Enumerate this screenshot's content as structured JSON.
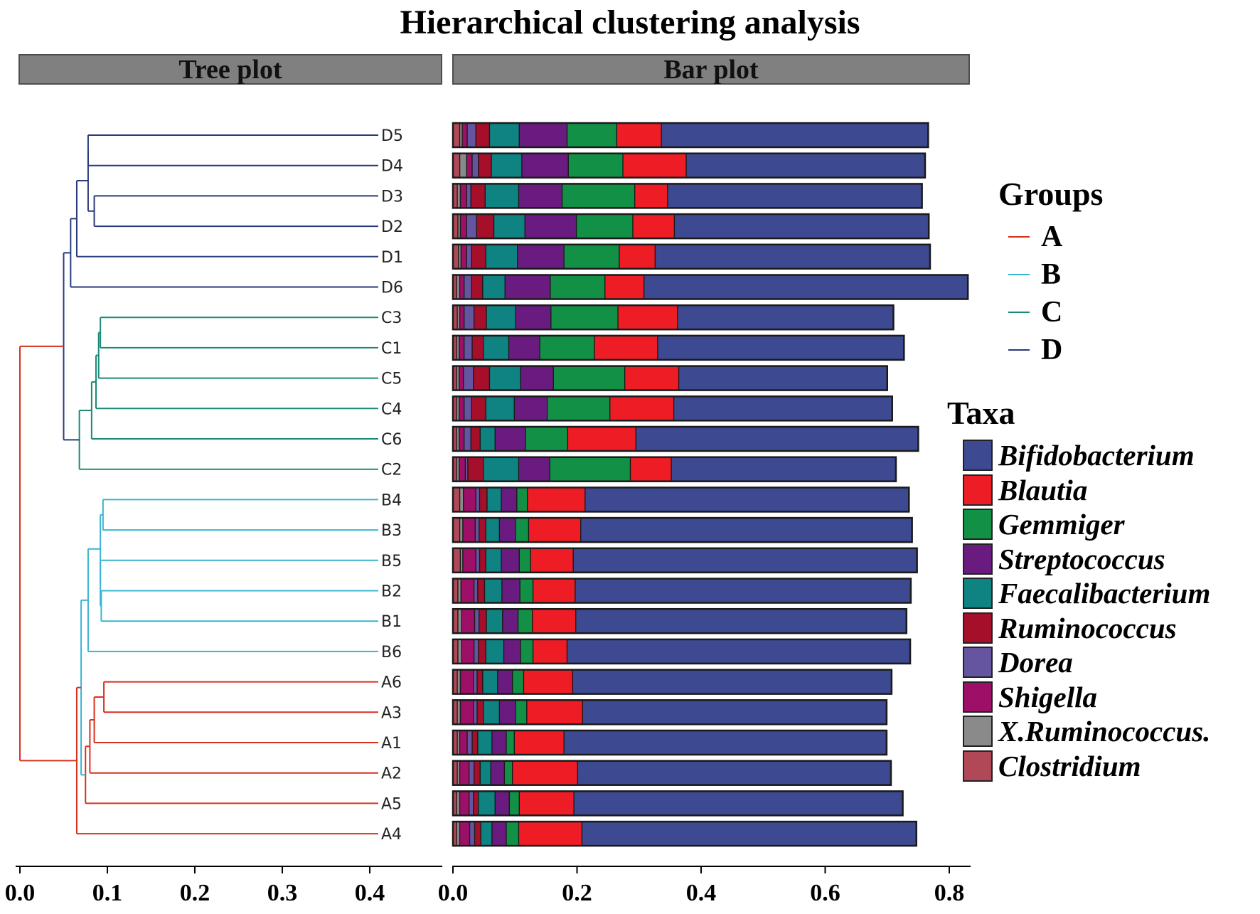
{
  "title": "Hierarchical clustering analysis",
  "panels": {
    "tree_label": "Tree plot",
    "bar_label": "Bar plot"
  },
  "groups_legend": {
    "title": "Groups",
    "items": [
      {
        "label": "A",
        "color": "#d7301f"
      },
      {
        "label": "B",
        "color": "#3bb3d1"
      },
      {
        "label": "C",
        "color": "#1a8a76"
      },
      {
        "label": "D",
        "color": "#283a7a"
      }
    ]
  },
  "taxa_legend": {
    "title": "Taxa",
    "items": [
      {
        "label": "Bifidobacterium",
        "color": "#3d4990"
      },
      {
        "label": "Blautia",
        "color": "#ee1c24"
      },
      {
        "label": "Gemmiger",
        "color": "#129146"
      },
      {
        "label": "Streptococcus",
        "color": "#6a1b7f"
      },
      {
        "label": "Faecalibacterium",
        "color": "#0f8282"
      },
      {
        "label": "Ruminococcus",
        "color": "#a50f2a"
      },
      {
        "label": "Dorea",
        "color": "#6555a0"
      },
      {
        "label": "Shigella",
        "color": "#9e0f67"
      },
      {
        "label": "X.Ruminococcus.",
        "color": "#8a8a8a"
      },
      {
        "label": "Clostridium",
        "color": "#b04858"
      }
    ]
  },
  "chart_data": [
    {
      "type": "dendrogram",
      "title": "Tree plot",
      "leaves_top_to_bottom": [
        "D5",
        "D4",
        "D3",
        "D2",
        "D1",
        "D6",
        "C3",
        "C1",
        "C5",
        "C4",
        "C6",
        "C2",
        "B4",
        "B3",
        "B5",
        "B2",
        "B1",
        "B6",
        "A6",
        "A3",
        "A1",
        "A2",
        "A5",
        "A4"
      ],
      "leaf_groups": [
        "D",
        "D",
        "D",
        "D",
        "D",
        "D",
        "C",
        "C",
        "C",
        "C",
        "C",
        "C",
        "B",
        "B",
        "B",
        "B",
        "B",
        "B",
        "A",
        "A",
        "A",
        "A",
        "A",
        "A"
      ],
      "merges": [
        {
          "a": "D4",
          "b": "D5",
          "height": 0.078,
          "group": "D"
        },
        {
          "a": "D2",
          "b": "D3",
          "height": 0.085,
          "group": "D"
        },
        {
          "a": "D5-D4",
          "b": "D3-D2",
          "height": 0.078,
          "group": "D"
        },
        {
          "a": "D5-D3",
          "b": "D1",
          "height": 0.065,
          "group": "D"
        },
        {
          "a": "D5-D1",
          "b": "D6",
          "height": 0.058,
          "group": "D"
        },
        {
          "a": "C3",
          "b": "C1",
          "height": 0.092,
          "group": "C"
        },
        {
          "a": "C3-C1",
          "b": "C5",
          "height": 0.09,
          "group": "C"
        },
        {
          "a": "C3-C5",
          "b": "C4",
          "height": 0.087,
          "group": "C"
        },
        {
          "a": "C3-C4",
          "b": "C6",
          "height": 0.082,
          "group": "C"
        },
        {
          "a": "C3-C6",
          "b": "C2",
          "height": 0.068,
          "group": "C"
        },
        {
          "a": "D-cluster",
          "b": "C-cluster",
          "height": 0.05,
          "group": "D"
        },
        {
          "a": "B4",
          "b": "B3",
          "height": 0.095,
          "group": "B"
        },
        {
          "a": "B2",
          "b": "B1",
          "height": 0.093,
          "group": "B"
        },
        {
          "a": "B5",
          "b": "B2-B1",
          "height": 0.092,
          "group": "B"
        },
        {
          "a": "B4-B3",
          "b": "B5-B1",
          "height": 0.092,
          "group": "B"
        },
        {
          "a": "B4-B1",
          "b": "B6",
          "height": 0.078,
          "group": "B"
        },
        {
          "a": "A6",
          "b": "A3",
          "height": 0.096,
          "group": "A"
        },
        {
          "a": "A6-A3",
          "b": "A1",
          "height": 0.085,
          "group": "A"
        },
        {
          "a": "A6-A1",
          "b": "A2",
          "height": 0.08,
          "group": "A"
        },
        {
          "a": "A6-A2",
          "b": "A5",
          "height": 0.075,
          "group": "A"
        },
        {
          "a": "B-cluster",
          "b": "A-cluster",
          "height": 0.07,
          "group": "B"
        },
        {
          "a": "B6-A5",
          "b": "A4",
          "height": 0.065,
          "group": "A"
        },
        {
          "a": "D/C-cluster",
          "b": "B/A-cluster",
          "height": 0.0,
          "group": "A"
        }
      ],
      "xlim": [
        0.0,
        0.48
      ],
      "xticks": [
        "0.0",
        "0.1",
        "0.2",
        "0.3",
        "0.4"
      ]
    },
    {
      "type": "stacked-barh",
      "title": "Bar plot",
      "categories": [
        "D5",
        "D4",
        "D3",
        "D2",
        "D1",
        "D6",
        "C3",
        "C1",
        "C5",
        "C4",
        "C6",
        "C2",
        "B4",
        "B3",
        "B5",
        "B2",
        "B1",
        "B6",
        "A6",
        "A3",
        "A1",
        "A2",
        "A5",
        "A4"
      ],
      "stack_order_from_axis": [
        "Clostridium",
        "X.Ruminococcus.",
        "Shigella",
        "Dorea",
        "Ruminococcus",
        "Faecalibacterium",
        "Streptococcus",
        "Gemmiger",
        "Blautia",
        "Bifidobacterium"
      ],
      "values": [
        [
          0.011,
          0.004,
          0.008,
          0.014,
          0.022,
          0.048,
          0.077,
          0.08,
          0.072,
          0.43
        ],
        [
          0.011,
          0.011,
          0.009,
          0.01,
          0.021,
          0.049,
          0.075,
          0.088,
          0.102,
          0.385
        ],
        [
          0.007,
          0.005,
          0.01,
          0.007,
          0.023,
          0.054,
          0.07,
          0.117,
          0.053,
          0.41
        ],
        [
          0.008,
          0.004,
          0.01,
          0.016,
          0.028,
          0.05,
          0.083,
          0.091,
          0.067,
          0.41
        ],
        [
          0.009,
          0.004,
          0.009,
          0.008,
          0.023,
          0.051,
          0.075,
          0.089,
          0.058,
          0.443
        ],
        [
          0.006,
          0.005,
          0.007,
          0.012,
          0.018,
          0.036,
          0.073,
          0.088,
          0.063,
          0.522
        ],
        [
          0.007,
          0.004,
          0.007,
          0.016,
          0.02,
          0.047,
          0.057,
          0.108,
          0.096,
          0.348
        ],
        [
          0.006,
          0.004,
          0.008,
          0.013,
          0.018,
          0.041,
          0.05,
          0.088,
          0.102,
          0.397
        ],
        [
          0.006,
          0.004,
          0.007,
          0.016,
          0.026,
          0.05,
          0.053,
          0.115,
          0.087,
          0.336
        ],
        [
          0.006,
          0.004,
          0.008,
          0.012,
          0.023,
          0.046,
          0.053,
          0.101,
          0.103,
          0.352
        ],
        [
          0.006,
          0.004,
          0.008,
          0.011,
          0.015,
          0.024,
          0.049,
          0.068,
          0.11,
          0.455
        ],
        [
          0.006,
          0.004,
          0.01,
          0.004,
          0.025,
          0.057,
          0.05,
          0.13,
          0.066,
          0.362
        ],
        [
          0.011,
          0.006,
          0.02,
          0.006,
          0.012,
          0.023,
          0.025,
          0.017,
          0.093,
          0.522
        ],
        [
          0.011,
          0.005,
          0.02,
          0.006,
          0.011,
          0.022,
          0.026,
          0.021,
          0.084,
          0.534
        ],
        [
          0.012,
          0.004,
          0.021,
          0.006,
          0.01,
          0.025,
          0.029,
          0.018,
          0.069,
          0.554
        ],
        [
          0.008,
          0.005,
          0.021,
          0.006,
          0.011,
          0.028,
          0.029,
          0.021,
          0.068,
          0.541
        ],
        [
          0.008,
          0.006,
          0.021,
          0.007,
          0.012,
          0.026,
          0.025,
          0.023,
          0.07,
          0.533
        ],
        [
          0.008,
          0.006,
          0.02,
          0.007,
          0.012,
          0.029,
          0.027,
          0.02,
          0.055,
          0.553
        ],
        [
          0.007,
          0.005,
          0.021,
          0.006,
          0.009,
          0.024,
          0.024,
          0.018,
          0.079,
          0.514
        ],
        [
          0.007,
          0.005,
          0.021,
          0.006,
          0.01,
          0.026,
          0.026,
          0.018,
          0.09,
          0.49
        ],
        [
          0.007,
          0.004,
          0.012,
          0.008,
          0.009,
          0.023,
          0.023,
          0.013,
          0.08,
          0.52
        ],
        [
          0.007,
          0.004,
          0.015,
          0.008,
          0.01,
          0.017,
          0.022,
          0.013,
          0.105,
          0.505
        ],
        [
          0.006,
          0.005,
          0.015,
          0.007,
          0.008,
          0.027,
          0.023,
          0.016,
          0.088,
          0.53
        ],
        [
          0.006,
          0.005,
          0.016,
          0.008,
          0.01,
          0.018,
          0.023,
          0.02,
          0.102,
          0.539
        ]
      ],
      "xlim": [
        0.0,
        0.83
      ],
      "xticks": [
        "0.0",
        "0.2",
        "0.4",
        "0.6",
        "0.8"
      ]
    }
  ]
}
